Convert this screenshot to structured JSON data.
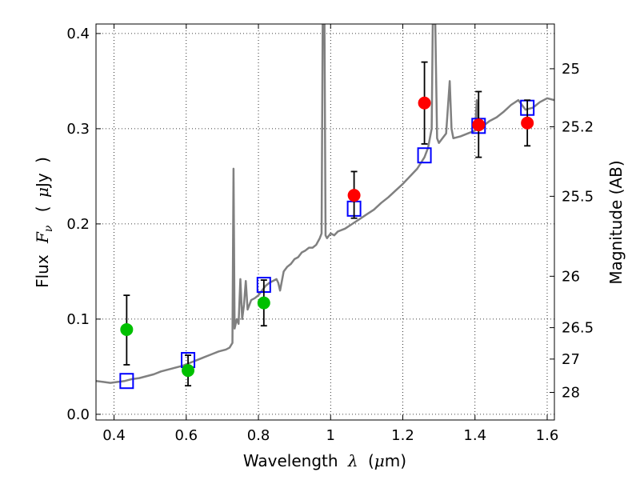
{
  "chart_data": {
    "type": "scatter",
    "xlabel_prefix": "Wavelength",
    "xlabel_symbol": "λ",
    "xlabel_unit_open": "(",
    "xlabel_unit_mu": "μ",
    "xlabel_unit_rest": "m)",
    "ylabel_prefix": "Flux",
    "ylabel_symbol": "F",
    "ylabel_sub": "ν",
    "ylabel_unit_open": "(",
    "ylabel_unit_mu": "μ",
    "ylabel_unit_rest": "Jy",
    "ylabel_unit_close": ")",
    "y2label": "Magnitude (AB)",
    "xlim": [
      0.35,
      1.62
    ],
    "ylim": [
      -0.006,
      0.41
    ],
    "grid": true,
    "x_ticks": [
      0.4,
      0.6,
      0.8,
      1.0,
      1.2,
      1.4,
      1.6
    ],
    "x_tick_labels": [
      "0.4",
      "0.6",
      "0.8",
      "1",
      "1.2",
      "1.4",
      "1.6"
    ],
    "y_ticks": [
      0.0,
      0.1,
      0.2,
      0.3,
      0.4
    ],
    "y_tick_labels": [
      "0.0",
      "0.1",
      "0.2",
      "0.3",
      "0.4"
    ],
    "y2_ticks": [
      {
        "label": "25",
        "flux": 0.363
      },
      {
        "label": "25.2",
        "flux": 0.302
      },
      {
        "label": "25.5",
        "flux": 0.229
      },
      {
        "label": "26",
        "flux": 0.145
      },
      {
        "label": "26.5",
        "flux": 0.091
      },
      {
        "label": "27",
        "flux": 0.058
      },
      {
        "label": "28",
        "flux": 0.023
      }
    ],
    "series": [
      {
        "kind": "line",
        "color": "#808080",
        "points": [
          [
            0.35,
            0.035
          ],
          [
            0.37,
            0.034
          ],
          [
            0.39,
            0.033
          ],
          [
            0.41,
            0.034
          ],
          [
            0.43,
            0.035
          ],
          [
            0.45,
            0.037
          ],
          [
            0.47,
            0.038
          ],
          [
            0.49,
            0.04
          ],
          [
            0.51,
            0.042
          ],
          [
            0.53,
            0.045
          ],
          [
            0.55,
            0.047
          ],
          [
            0.57,
            0.049
          ],
          [
            0.59,
            0.051
          ],
          [
            0.61,
            0.054
          ],
          [
            0.63,
            0.057
          ],
          [
            0.65,
            0.06
          ],
          [
            0.67,
            0.063
          ],
          [
            0.69,
            0.066
          ],
          [
            0.71,
            0.068
          ],
          [
            0.72,
            0.07
          ],
          [
            0.728,
            0.075
          ],
          [
            0.731,
            0.258
          ],
          [
            0.734,
            0.09
          ],
          [
            0.74,
            0.1
          ],
          [
            0.745,
            0.095
          ],
          [
            0.75,
            0.142
          ],
          [
            0.755,
            0.1
          ],
          [
            0.76,
            0.115
          ],
          [
            0.765,
            0.14
          ],
          [
            0.77,
            0.11
          ],
          [
            0.78,
            0.12
          ],
          [
            0.79,
            0.122
          ],
          [
            0.8,
            0.125
          ],
          [
            0.81,
            0.13
          ],
          [
            0.82,
            0.135
          ],
          [
            0.83,
            0.138
          ],
          [
            0.84,
            0.14
          ],
          [
            0.85,
            0.142
          ],
          [
            0.855,
            0.138
          ],
          [
            0.86,
            0.13
          ],
          [
            0.87,
            0.15
          ],
          [
            0.88,
            0.155
          ],
          [
            0.89,
            0.158
          ],
          [
            0.9,
            0.163
          ],
          [
            0.91,
            0.165
          ],
          [
            0.92,
            0.17
          ],
          [
            0.93,
            0.172
          ],
          [
            0.94,
            0.175
          ],
          [
            0.95,
            0.175
          ],
          [
            0.96,
            0.178
          ],
          [
            0.97,
            0.185
          ],
          [
            0.975,
            0.19
          ],
          [
            0.978,
            0.41
          ],
          [
            0.983,
            0.41
          ],
          [
            0.986,
            0.188
          ],
          [
            0.99,
            0.185
          ],
          [
            1.0,
            0.19
          ],
          [
            1.01,
            0.188
          ],
          [
            1.02,
            0.192
          ],
          [
            1.04,
            0.195
          ],
          [
            1.06,
            0.2
          ],
          [
            1.08,
            0.205
          ],
          [
            1.1,
            0.21
          ],
          [
            1.12,
            0.215
          ],
          [
            1.14,
            0.222
          ],
          [
            1.16,
            0.228
          ],
          [
            1.18,
            0.235
          ],
          [
            1.2,
            0.242
          ],
          [
            1.22,
            0.25
          ],
          [
            1.24,
            0.258
          ],
          [
            1.26,
            0.27
          ],
          [
            1.27,
            0.28
          ],
          [
            1.28,
            0.3
          ],
          [
            1.283,
            0.41
          ],
          [
            1.29,
            0.41
          ],
          [
            1.295,
            0.29
          ],
          [
            1.3,
            0.285
          ],
          [
            1.31,
            0.29
          ],
          [
            1.32,
            0.295
          ],
          [
            1.33,
            0.35
          ],
          [
            1.335,
            0.3
          ],
          [
            1.34,
            0.29
          ],
          [
            1.36,
            0.292
          ],
          [
            1.38,
            0.295
          ],
          [
            1.4,
            0.298
          ],
          [
            1.405,
            0.33
          ],
          [
            1.41,
            0.3
          ],
          [
            1.42,
            0.302
          ],
          [
            1.44,
            0.308
          ],
          [
            1.46,
            0.312
          ],
          [
            1.48,
            0.318
          ],
          [
            1.5,
            0.325
          ],
          [
            1.52,
            0.33
          ],
          [
            1.54,
            0.32
          ],
          [
            1.56,
            0.322
          ],
          [
            1.58,
            0.328
          ],
          [
            1.6,
            0.332
          ],
          [
            1.62,
            0.33
          ]
        ]
      },
      {
        "kind": "model-squares",
        "color": "#0000ff",
        "points": [
          [
            0.435,
            0.035
          ],
          [
            0.605,
            0.057
          ],
          [
            0.815,
            0.136
          ],
          [
            1.065,
            0.216
          ],
          [
            1.26,
            0.272
          ],
          [
            1.41,
            0.303
          ],
          [
            1.545,
            0.322
          ]
        ]
      },
      {
        "kind": "points-with-errors",
        "color": "#00c000",
        "points": [
          {
            "x": 0.435,
            "y": 0.089,
            "lo": 0.052,
            "hi": 0.125
          },
          {
            "x": 0.605,
            "y": 0.046,
            "lo": 0.03,
            "hi": 0.062
          },
          {
            "x": 0.815,
            "y": 0.117,
            "lo": 0.093,
            "hi": 0.141
          }
        ]
      },
      {
        "kind": "points-with-errors",
        "color": "#ff0000",
        "points": [
          {
            "x": 1.065,
            "y": 0.23,
            "lo": 0.206,
            "hi": 0.255
          },
          {
            "x": 1.26,
            "y": 0.327,
            "lo": 0.284,
            "hi": 0.37
          },
          {
            "x": 1.41,
            "y": 0.304,
            "lo": 0.27,
            "hi": 0.339
          },
          {
            "x": 1.545,
            "y": 0.306,
            "lo": 0.282,
            "hi": 0.33
          }
        ]
      }
    ]
  }
}
